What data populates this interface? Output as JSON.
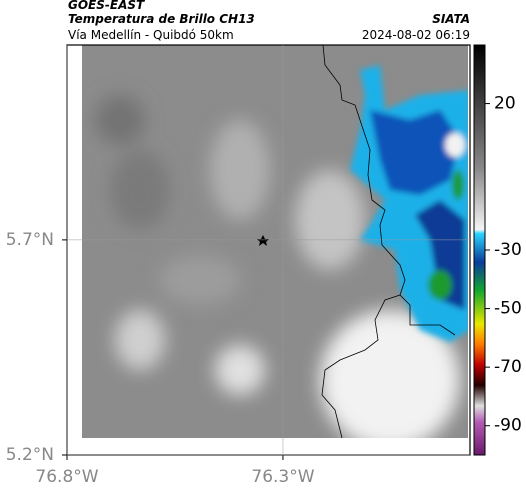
{
  "header": {
    "title": "GOES-EAST",
    "subtitle": "Temperatura de Brillo CH13",
    "route": "Vía Medellín - Quibdó 50km",
    "source": "SIATA",
    "timestamp": "2024-08-02 06:19"
  },
  "map": {
    "xlim": [
      -76.8,
      -75.867
    ],
    "ylim": [
      5.2,
      6.153
    ],
    "xticks": [
      {
        "value": -76.8,
        "label": "76.8°W"
      },
      {
        "value": -76.3,
        "label": "76.3°W"
      }
    ],
    "yticks": [
      {
        "value": 5.7,
        "label": "5.7°N"
      },
      {
        "value": 5.2,
        "label": "5.2°N"
      }
    ]
  },
  "colorbar": {
    "lim": [
      40,
      -100
    ],
    "ticks": [
      20,
      -30,
      -50,
      -70,
      -90
    ]
  }
}
